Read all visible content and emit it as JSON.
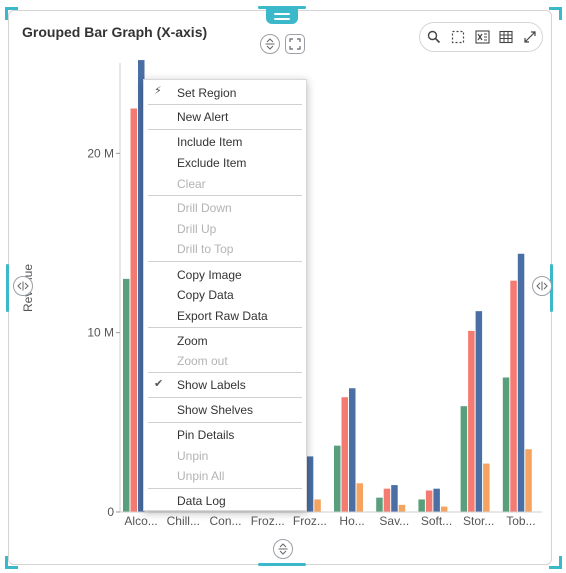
{
  "widget": {
    "title": "Grouped Bar Graph (X-axis)"
  },
  "toolbar_icons": [
    "search-icon",
    "select-region-icon",
    "export-excel-icon",
    "table-view-icon",
    "expand-icon"
  ],
  "context_menu": {
    "items": [
      {
        "label": "Set Region",
        "enabled": true,
        "icon": "lightning-icon"
      },
      {
        "label": "New Alert",
        "enabled": true
      },
      {
        "label": "Include Item",
        "enabled": true
      },
      {
        "label": "Exclude Item",
        "enabled": true
      },
      {
        "label": "Clear",
        "enabled": false
      },
      {
        "label": "Drill Down",
        "enabled": false
      },
      {
        "label": "Drill Up",
        "enabled": false
      },
      {
        "label": "Drill to Top",
        "enabled": false
      },
      {
        "label": "Copy Image",
        "enabled": true
      },
      {
        "label": "Copy Data",
        "enabled": true
      },
      {
        "label": "Export Raw Data",
        "enabled": true
      },
      {
        "label": "Zoom",
        "enabled": true
      },
      {
        "label": "Zoom out",
        "enabled": false
      },
      {
        "label": "Show Labels",
        "enabled": true,
        "checked": true
      },
      {
        "label": "Show Shelves",
        "enabled": true
      },
      {
        "label": "Pin Details",
        "enabled": true
      },
      {
        "label": "Unpin",
        "enabled": false
      },
      {
        "label": "Unpin All",
        "enabled": false
      },
      {
        "label": "Data Log",
        "enabled": true
      }
    ]
  },
  "chart_data": {
    "type": "bar",
    "ylabel": "Revenue",
    "y_ticks": [
      "0",
      "10 M",
      "20 M"
    ],
    "ylim": [
      0,
      25
    ],
    "categories": [
      "Alco...",
      "Chill...",
      "Con...",
      "Froz...",
      "Froz...",
      "Ho...",
      "Sav...",
      "Soft...",
      "Stor...",
      "Tob..."
    ],
    "colors": [
      "#5a9f7c",
      "#f47b72",
      "#4a6fa5",
      "#f4a460"
    ],
    "series": [
      {
        "values": [
          13.0,
          0,
          0,
          0,
          0,
          3.7,
          0.8,
          0.7,
          5.9,
          7.5
        ]
      },
      {
        "values": [
          22.5,
          0,
          0,
          0,
          0,
          6.4,
          1.3,
          1.2,
          10.1,
          12.9
        ]
      },
      {
        "values": [
          25.2,
          0,
          0,
          0,
          3.1,
          6.9,
          1.5,
          1.3,
          11.2,
          14.4
        ]
      },
      {
        "values": [
          0,
          0,
          0,
          0,
          0.7,
          1.6,
          0.4,
          0.3,
          2.7,
          3.5
        ]
      }
    ]
  }
}
